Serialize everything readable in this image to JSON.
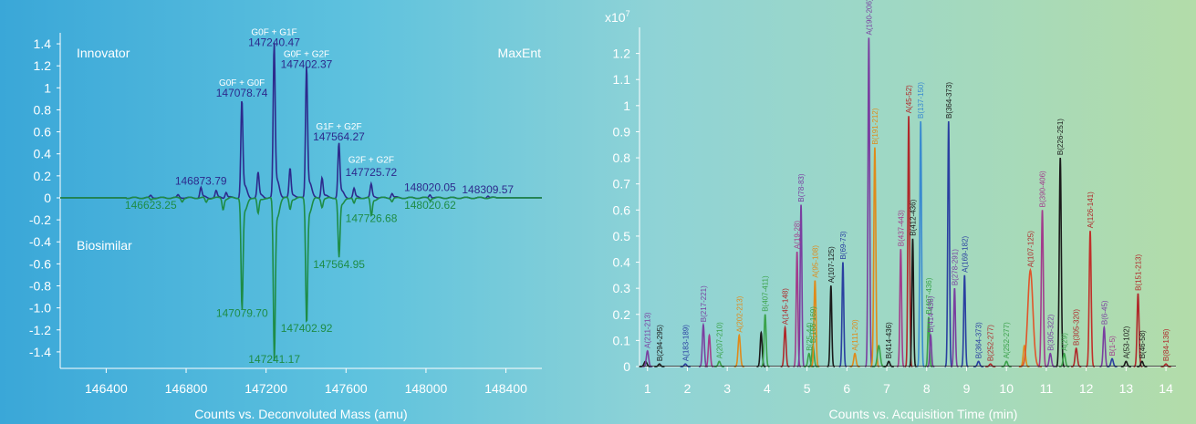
{
  "colors": {
    "innovator": "#2d2a8c",
    "biosimilar": "#1e8c46",
    "text_light": "#ffffff",
    "axis": "#ffffff"
  },
  "left_chart": {
    "corner_left": "Innovator",
    "corner_right": "MaxEnt",
    "lower_label": "Biosimilar",
    "xlabel": "Counts vs. Deconvoluted Mass (amu)",
    "peak_labels": [
      {
        "text": "G0F + G1F",
        "x": 147240.47,
        "y": 1.48,
        "color": "light",
        "size": "small"
      },
      {
        "text": "147240.47",
        "x": 147240.47,
        "y": 1.38,
        "color": "innovator",
        "size": "normal"
      },
      {
        "text": "G0F + G2F",
        "x": 147402.37,
        "y": 1.28,
        "color": "light",
        "size": "small"
      },
      {
        "text": "147402.37",
        "x": 147402.37,
        "y": 1.18,
        "color": "innovator",
        "size": "normal"
      },
      {
        "text": "G0F + G0F",
        "x": 147078.74,
        "y": 1.02,
        "color": "light",
        "size": "small"
      },
      {
        "text": "147078.74",
        "x": 147078.74,
        "y": 0.92,
        "color": "innovator",
        "size": "normal"
      },
      {
        "text": "G1F + G2F",
        "x": 147564.27,
        "y": 0.62,
        "color": "light",
        "size": "small"
      },
      {
        "text": "147564.27",
        "x": 147564.27,
        "y": 0.52,
        "color": "innovator",
        "size": "normal"
      },
      {
        "text": "G2F + G2F",
        "x": 147725.72,
        "y": 0.32,
        "color": "light",
        "size": "small"
      },
      {
        "text": "147725.72",
        "x": 147725.72,
        "y": 0.2,
        "color": "innovator",
        "size": "normal"
      },
      {
        "text": "146873.79",
        "x": 146873.79,
        "y": 0.12,
        "color": "innovator",
        "size": "normal"
      },
      {
        "text": "148020.05",
        "x": 148020.05,
        "y": 0.06,
        "color": "innovator",
        "size": "normal"
      },
      {
        "text": "148309.57",
        "x": 148309.57,
        "y": 0.04,
        "color": "innovator",
        "size": "normal"
      },
      {
        "text": "146623.25",
        "x": 146623.25,
        "y": -0.1,
        "color": "biosimilar",
        "size": "normal"
      },
      {
        "text": "147726.68",
        "x": 147726.68,
        "y": -0.22,
        "color": "biosimilar",
        "size": "normal"
      },
      {
        "text": "148020.62",
        "x": 148020.62,
        "y": -0.1,
        "color": "biosimilar",
        "size": "normal"
      },
      {
        "text": "147564.95",
        "x": 147564.95,
        "y": -0.64,
        "color": "biosimilar",
        "size": "normal"
      },
      {
        "text": "147079.70",
        "x": 147079.7,
        "y": -1.08,
        "color": "biosimilar",
        "size": "normal"
      },
      {
        "text": "147402.92",
        "x": 147402.92,
        "y": -1.22,
        "color": "biosimilar",
        "size": "normal"
      },
      {
        "text": "147241.17",
        "x": 147241.17,
        "y": -1.5,
        "color": "biosimilar",
        "size": "normal"
      }
    ]
  },
  "chart_data": [
    {
      "type": "line",
      "title": "",
      "xlabel": "Counts vs. Deconvoluted Mass (amu)",
      "ylabel": "",
      "xlim": [
        146170,
        148580
      ],
      "ylim": [
        -1.55,
        1.5
      ],
      "xticks": [
        146400,
        146800,
        147200,
        147600,
        148000,
        148400
      ],
      "yticks": [
        1.4,
        1.2,
        1,
        0.8,
        0.6,
        0.4,
        0.2,
        0,
        -0.2,
        -0.4,
        -0.6,
        -0.8,
        -1.0,
        -1.2,
        -1.4
      ],
      "ytick_labels": [
        "1.4",
        "1.2",
        "1",
        "0.8",
        "0.6",
        "0.4",
        "0.2",
        "0",
        "-0.2",
        "-0.4",
        "-0.6",
        "-0.8",
        "-1.0",
        "-1.2",
        "-1.4"
      ],
      "grid": false,
      "series": [
        {
          "name": "Innovator",
          "peaks": [
            {
              "x": 146623.25,
              "y": 0.02
            },
            {
              "x": 146760,
              "y": 0.025
            },
            {
              "x": 146873.79,
              "y": 0.09
            },
            {
              "x": 146950,
              "y": 0.06
            },
            {
              "x": 147000,
              "y": 0.05
            },
            {
              "x": 147078.74,
              "y": 0.86
            },
            {
              "x": 147160,
              "y": 0.22
            },
            {
              "x": 147240.47,
              "y": 1.35
            },
            {
              "x": 147320,
              "y": 0.26
            },
            {
              "x": 147402.37,
              "y": 1.16
            },
            {
              "x": 147480,
              "y": 0.18
            },
            {
              "x": 147564.27,
              "y": 0.48
            },
            {
              "x": 147640,
              "y": 0.08
            },
            {
              "x": 147725.72,
              "y": 0.12
            },
            {
              "x": 147830,
              "y": 0.04
            },
            {
              "x": 148020.05,
              "y": 0.03
            },
            {
              "x": 148309.57,
              "y": 0.02
            }
          ]
        },
        {
          "name": "Biosimilar",
          "peaks": [
            {
              "x": 146623.25,
              "y": -0.02
            },
            {
              "x": 146780,
              "y": -0.03
            },
            {
              "x": 146900,
              "y": -0.04
            },
            {
              "x": 146985,
              "y": -0.1
            },
            {
              "x": 147079.7,
              "y": -0.98
            },
            {
              "x": 147160,
              "y": -0.14
            },
            {
              "x": 147241.17,
              "y": -1.42
            },
            {
              "x": 147320,
              "y": -0.1
            },
            {
              "x": 147402.92,
              "y": -1.1
            },
            {
              "x": 147480,
              "y": -0.08
            },
            {
              "x": 147564.95,
              "y": -0.52
            },
            {
              "x": 147640,
              "y": -0.05
            },
            {
              "x": 147726.68,
              "y": -0.16
            },
            {
              "x": 147830,
              "y": -0.03
            },
            {
              "x": 148020.62,
              "y": -0.02
            }
          ]
        }
      ]
    },
    {
      "type": "line",
      "title": "",
      "xlabel": "Counts vs. Acquisition Time (min)",
      "ylabel": "",
      "y_multiplier_label": "x10",
      "y_multiplier_exp": "7",
      "xlim": [
        0.8,
        14.25
      ],
      "ylim": [
        0,
        1.3
      ],
      "xticks": [
        1,
        2,
        3,
        4,
        5,
        6,
        7,
        8,
        9,
        10,
        11,
        12,
        13,
        14
      ],
      "xtick_labels": [
        "1",
        "2",
        "3",
        "4",
        "5",
        "6",
        "7",
        "8",
        "9",
        "10",
        "11",
        "12",
        "13",
        "14"
      ],
      "yticks": [
        0,
        0.1,
        0.2,
        0.3,
        0.4,
        0.5,
        0.6,
        0.7,
        0.8,
        0.9,
        1,
        1.1,
        1.2
      ],
      "ytick_labels": [
        "0",
        "0.1",
        "0.2",
        "0.3",
        "0.4",
        "0.5",
        "0.6",
        "0.7",
        "0.8",
        "0.9",
        "1",
        "1.1",
        "1.2"
      ],
      "grid": false,
      "peaks": [
        {
          "t": 0.95,
          "h": 0.02,
          "w": 0.05,
          "c": "#1a1a1a",
          "label": "",
          "lc": ""
        },
        {
          "t": 1.0,
          "h": 0.06,
          "w": 0.04,
          "c": "#7a3fa0",
          "label": "A(211-213)",
          "lc": "#7a3fa0"
        },
        {
          "t": 1.3,
          "h": 0.01,
          "w": 0.04,
          "c": "#1a1a1a",
          "label": "B(294-295)",
          "lc": "#1a1a1a"
        },
        {
          "t": 1.95,
          "h": 0.01,
          "w": 0.04,
          "c": "#2a3fa0",
          "label": "A(183-189)",
          "lc": "#2a3fa0"
        },
        {
          "t": 2.4,
          "h": 0.16,
          "w": 0.035,
          "c": "#7a3fa0",
          "label": "B(217-221)",
          "lc": "#7a3fa0"
        },
        {
          "t": 2.55,
          "h": 0.12,
          "w": 0.035,
          "c": "#a23c8c",
          "label": "",
          "lc": ""
        },
        {
          "t": 2.8,
          "h": 0.02,
          "w": 0.04,
          "c": "#3aa24a",
          "label": "A(207-210)",
          "lc": "#3aa24a"
        },
        {
          "t": 3.3,
          "h": 0.12,
          "w": 0.04,
          "c": "#e08a1a",
          "label": "A(202-213)",
          "lc": "#e08a1a"
        },
        {
          "t": 3.85,
          "h": 0.13,
          "w": 0.035,
          "c": "#1a1a1a",
          "label": "",
          "lc": ""
        },
        {
          "t": 3.95,
          "h": 0.2,
          "w": 0.035,
          "c": "#3aa24a",
          "label": "B(407-411)",
          "lc": "#3aa24a"
        },
        {
          "t": 4.45,
          "h": 0.15,
          "w": 0.035,
          "c": "#b0282a",
          "label": "A(145-148)",
          "lc": "#b0282a"
        },
        {
          "t": 4.75,
          "h": 0.44,
          "w": 0.03,
          "c": "#a23c8c",
          "label": "A(19-28)",
          "lc": "#a23c8c"
        },
        {
          "t": 4.85,
          "h": 0.62,
          "w": 0.03,
          "c": "#7a3fa0",
          "label": "B(78-83)",
          "lc": "#7a3fa0"
        },
        {
          "t": 5.05,
          "h": 0.05,
          "w": 0.04,
          "c": "#3aa24a",
          "label": "B(25-44)",
          "lc": "#3aa24a"
        },
        {
          "t": 5.15,
          "h": 0.08,
          "w": 0.04,
          "c": "#3aa24a",
          "label": "B(166-169)",
          "lc": "#3aa24a"
        },
        {
          "t": 5.2,
          "h": 0.33,
          "w": 0.035,
          "c": "#e08a1a",
          "label": "A(95-108)",
          "lc": "#e08a1a"
        },
        {
          "t": 5.6,
          "h": 0.31,
          "w": 0.03,
          "c": "#1a1a1a",
          "label": "A(107-125)",
          "lc": "#1a1a1a"
        },
        {
          "t": 5.9,
          "h": 0.4,
          "w": 0.03,
          "c": "#2a3fa0",
          "label": "B(69-73)",
          "lc": "#2a3fa0"
        },
        {
          "t": 6.2,
          "h": 0.05,
          "w": 0.04,
          "c": "#e08a1a",
          "label": "A(111-20)",
          "lc": "#e08a1a"
        },
        {
          "t": 6.55,
          "h": 1.26,
          "w": 0.03,
          "c": "#7a3fa0",
          "label": "A(190-206)",
          "lc": "#7a3fa0"
        },
        {
          "t": 6.7,
          "h": 0.84,
          "w": 0.035,
          "c": "#e08a1a",
          "label": "B(191-212)",
          "lc": "#e08a1a"
        },
        {
          "t": 6.8,
          "h": 0.08,
          "w": 0.05,
          "c": "#3aa24a",
          "label": "",
          "lc": ""
        },
        {
          "t": 7.05,
          "h": 0.02,
          "w": 0.04,
          "c": "#1a1a1a",
          "label": "B(414-436)",
          "lc": "#1a1a1a"
        },
        {
          "t": 7.55,
          "h": 0.96,
          "w": 0.03,
          "c": "#b0282a",
          "label": "A(45-52)",
          "lc": "#b0282a"
        },
        {
          "t": 7.65,
          "h": 0.49,
          "w": 0.03,
          "c": "#1a1a1a",
          "label": "B(412-436)",
          "lc": "#1a1a1a"
        },
        {
          "t": 7.35,
          "h": 0.45,
          "w": 0.03,
          "c": "#a23c8c",
          "label": "B(437-443)",
          "lc": "#a23c8c"
        },
        {
          "t": 7.85,
          "h": 0.94,
          "w": 0.03,
          "c": "#3a8ad0",
          "label": "B(137-150)",
          "lc": "#3a8ad0"
        },
        {
          "t": 8.05,
          "h": 0.19,
          "w": 0.03,
          "c": "#3aa24a",
          "label": "B(407-436)",
          "lc": "#3aa24a"
        },
        {
          "t": 8.1,
          "h": 0.12,
          "w": 0.03,
          "c": "#7a3fa0",
          "label": "B(414-436)",
          "lc": "#7a3fa0"
        },
        {
          "t": 8.55,
          "h": 0.94,
          "w": 0.03,
          "c": "#2a3fa0",
          "label": "B(364-373)",
          "lc": "#1a1a1a"
        },
        {
          "t": 8.7,
          "h": 0.3,
          "w": 0.03,
          "c": "#7a3fa0",
          "label": "B(278-291)",
          "lc": "#7a3fa0"
        },
        {
          "t": 8.95,
          "h": 0.35,
          "w": 0.03,
          "c": "#2a3fa0",
          "label": "A(169-182)",
          "lc": "#2a3fa0"
        },
        {
          "t": 9.3,
          "h": 0.02,
          "w": 0.04,
          "c": "#2a3fa0",
          "label": "B(364-373)",
          "lc": "#2a3fa0"
        },
        {
          "t": 9.6,
          "h": 0.01,
          "w": 0.04,
          "c": "#b0282a",
          "label": "B(252-277)",
          "lc": "#b0282a"
        },
        {
          "t": 10.0,
          "h": 0.02,
          "w": 0.04,
          "c": "#3aa24a",
          "label": "A(252-277)",
          "lc": "#3aa24a"
        },
        {
          "t": 10.45,
          "h": 0.08,
          "w": 0.04,
          "c": "#e08a1a",
          "label": "",
          "lc": ""
        },
        {
          "t": 10.6,
          "h": 0.37,
          "w": 0.09,
          "c": "#e0552a",
          "label": "A(107-125)",
          "lc": "#b0282a"
        },
        {
          "t": 10.9,
          "h": 0.6,
          "w": 0.035,
          "c": "#a23c8c",
          "label": "B(390-406)",
          "lc": "#a23c8c"
        },
        {
          "t": 11.1,
          "h": 0.05,
          "w": 0.04,
          "c": "#7a3fa0",
          "label": "B(305-322)",
          "lc": "#7a3fa0"
        },
        {
          "t": 11.35,
          "h": 0.8,
          "w": 0.035,
          "c": "#1a1a1a",
          "label": "B(226-251)",
          "lc": "#1a1a1a"
        },
        {
          "t": 11.45,
          "h": 0.05,
          "w": 0.04,
          "c": "#3aa24a",
          "label": "A(29)",
          "lc": "#3aa24a"
        },
        {
          "t": 11.75,
          "h": 0.07,
          "w": 0.04,
          "c": "#b0282a",
          "label": "B(305-320)",
          "lc": "#b0282a"
        },
        {
          "t": 12.1,
          "h": 0.52,
          "w": 0.035,
          "c": "#c0302a",
          "label": "A(126-141)",
          "lc": "#b0282a"
        },
        {
          "t": 12.45,
          "h": 0.15,
          "w": 0.035,
          "c": "#7a3fa0",
          "label": "B(6-45)",
          "lc": "#7a3fa0"
        },
        {
          "t": 12.65,
          "h": 0.03,
          "w": 0.04,
          "c": "#2a3fa0",
          "label": "B(1-5)",
          "lc": "#a23c8c"
        },
        {
          "t": 13.0,
          "h": 0.02,
          "w": 0.04,
          "c": "#1a1a1a",
          "label": "A(53-102)",
          "lc": "#1a1a1a"
        },
        {
          "t": 13.3,
          "h": 0.28,
          "w": 0.035,
          "c": "#b0282a",
          "label": "B(151-213)",
          "lc": "#b0282a"
        },
        {
          "t": 13.4,
          "h": 0.02,
          "w": 0.04,
          "c": "#1a1a1a",
          "label": "B(46-58)",
          "lc": "#1a1a1a"
        },
        {
          "t": 14.0,
          "h": 0.01,
          "w": 0.04,
          "c": "#b0282a",
          "label": "B(84-136)",
          "lc": "#b0282a"
        }
      ]
    }
  ]
}
